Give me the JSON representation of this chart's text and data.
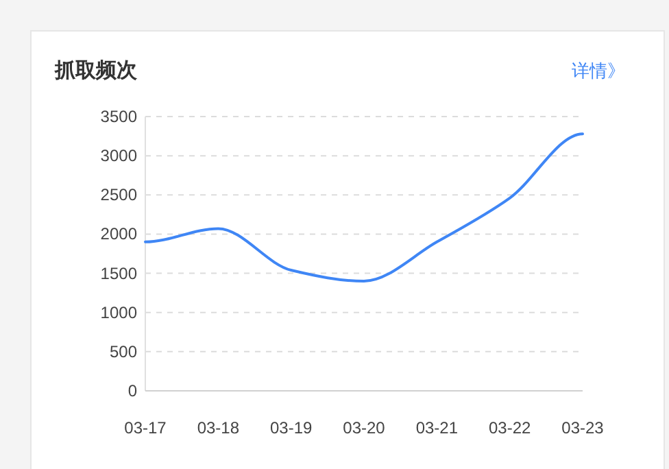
{
  "chart_data": {
    "type": "line",
    "title": "抓取频次",
    "annotations": [
      "详情》"
    ],
    "categories": [
      "03-17",
      "03-18",
      "03-19",
      "03-20",
      "03-21",
      "03-22",
      "03-23"
    ],
    "series": [
      {
        "color": "#3f86f5",
        "values": [
          1900,
          2070,
          1540,
          1400,
          1900,
          2460,
          3280
        ]
      }
    ],
    "ylim": [
      0,
      3500
    ],
    "yticks": [
      0,
      500,
      1000,
      1500,
      2000,
      2500,
      3000,
      3500
    ],
    "grid": "y"
  }
}
